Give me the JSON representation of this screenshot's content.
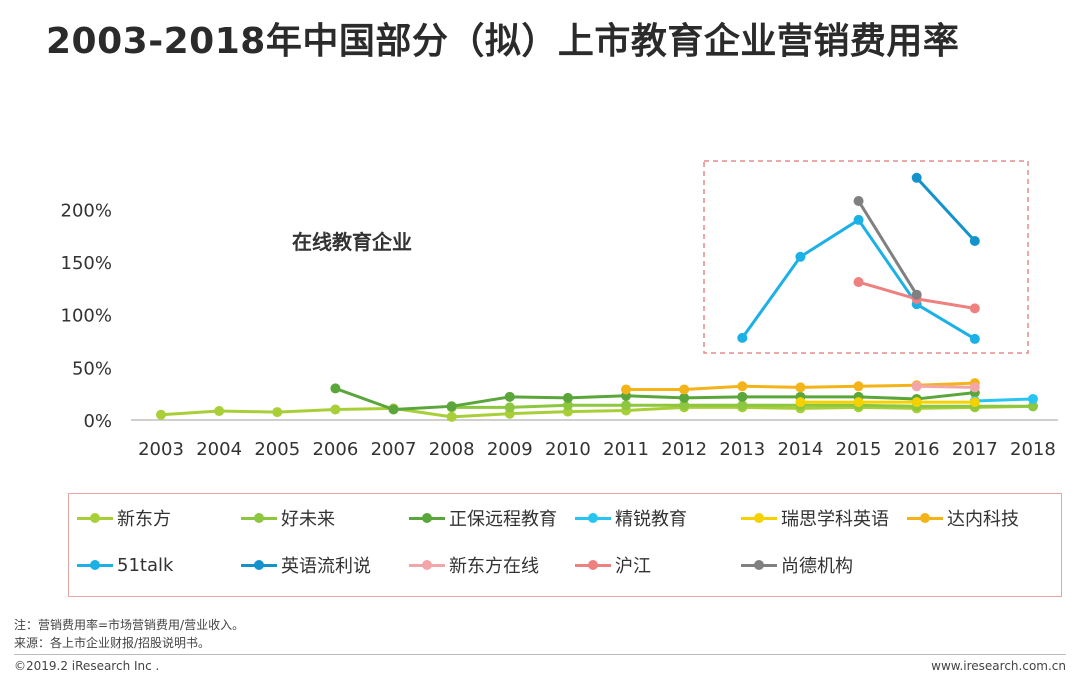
{
  "page": {
    "title": "2003-2018年中国部分（拟）上市教育企业营销费用率",
    "note": "注：营销费用率=市场营销费用/营业收入。",
    "source": "来源：各上市企业财报/招股说明书。",
    "copyright": "©2019.2 iResearch Inc .",
    "website": "www.iresearch.com.cn"
  },
  "chart_data": {
    "type": "line",
    "title": "2003-2018年中国部分（拟）上市教育企业营销费用率",
    "xlabel": "",
    "ylabel": "",
    "categories": [
      "2003",
      "2004",
      "2005",
      "2006",
      "2007",
      "2008",
      "2009",
      "2010",
      "2011",
      "2012",
      "2013",
      "2014",
      "2015",
      "2016",
      "2017",
      "2018"
    ],
    "y_ticks": [
      "0%",
      "50%",
      "100%",
      "150%",
      "200%"
    ],
    "ylim": [
      0,
      250
    ],
    "grid": false,
    "legend_position": "bottom",
    "annotation": "在线教育企业",
    "highlight_box": "2013-2017 dashed",
    "series": [
      {
        "name": "新东方",
        "color": "#a9cf38",
        "values": [
          5,
          8.5,
          7.5,
          10,
          11,
          3,
          6,
          8,
          9,
          12,
          12,
          11,
          12,
          11,
          12,
          13
        ]
      },
      {
        "name": "好未来",
        "color": "#8dc63f",
        "values": [
          null,
          null,
          null,
          null,
          null,
          12,
          12,
          14,
          14,
          14,
          14,
          14,
          14,
          13,
          13,
          13
        ]
      },
      {
        "name": "正保远程教育",
        "color": "#5aa63a",
        "values": [
          null,
          null,
          null,
          30,
          10,
          13,
          22,
          21,
          23,
          21,
          22,
          22,
          22,
          20,
          26,
          null
        ]
      },
      {
        "name": "精锐教育",
        "color": "#29c5f2",
        "values": [
          null,
          null,
          null,
          null,
          null,
          null,
          null,
          null,
          null,
          null,
          null,
          null,
          null,
          null,
          18,
          20
        ]
      },
      {
        "name": "瑞思学科英语",
        "color": "#f5d100",
        "values": [
          null,
          null,
          null,
          null,
          null,
          null,
          null,
          null,
          null,
          null,
          null,
          17,
          17,
          17,
          17,
          null
        ]
      },
      {
        "name": "达内科技",
        "color": "#f5b31a",
        "values": [
          null,
          null,
          null,
          null,
          null,
          null,
          null,
          null,
          29,
          29,
          32,
          31,
          32,
          33,
          35,
          null
        ]
      },
      {
        "name": "51talk",
        "color": "#1cb1e6",
        "values": [
          null,
          null,
          null,
          null,
          null,
          null,
          null,
          null,
          null,
          null,
          78,
          155,
          190,
          110,
          77,
          null
        ]
      },
      {
        "name": "英语流利说",
        "color": "#1492cc",
        "values": [
          null,
          null,
          null,
          null,
          null,
          null,
          null,
          null,
          null,
          null,
          null,
          null,
          null,
          230,
          170,
          null
        ]
      },
      {
        "name": "新东方在线",
        "color": "#f3a6a9",
        "values": [
          null,
          null,
          null,
          null,
          null,
          null,
          null,
          null,
          null,
          null,
          null,
          null,
          null,
          32,
          31,
          null
        ]
      },
      {
        "name": "沪江",
        "color": "#ef8080",
        "values": [
          null,
          null,
          null,
          null,
          null,
          null,
          null,
          null,
          null,
          null,
          null,
          null,
          131,
          115,
          106,
          null
        ]
      },
      {
        "name": "尚德机构",
        "color": "#808080",
        "values": [
          null,
          null,
          null,
          null,
          null,
          null,
          null,
          null,
          null,
          null,
          null,
          null,
          208,
          119,
          null,
          null
        ]
      }
    ]
  }
}
